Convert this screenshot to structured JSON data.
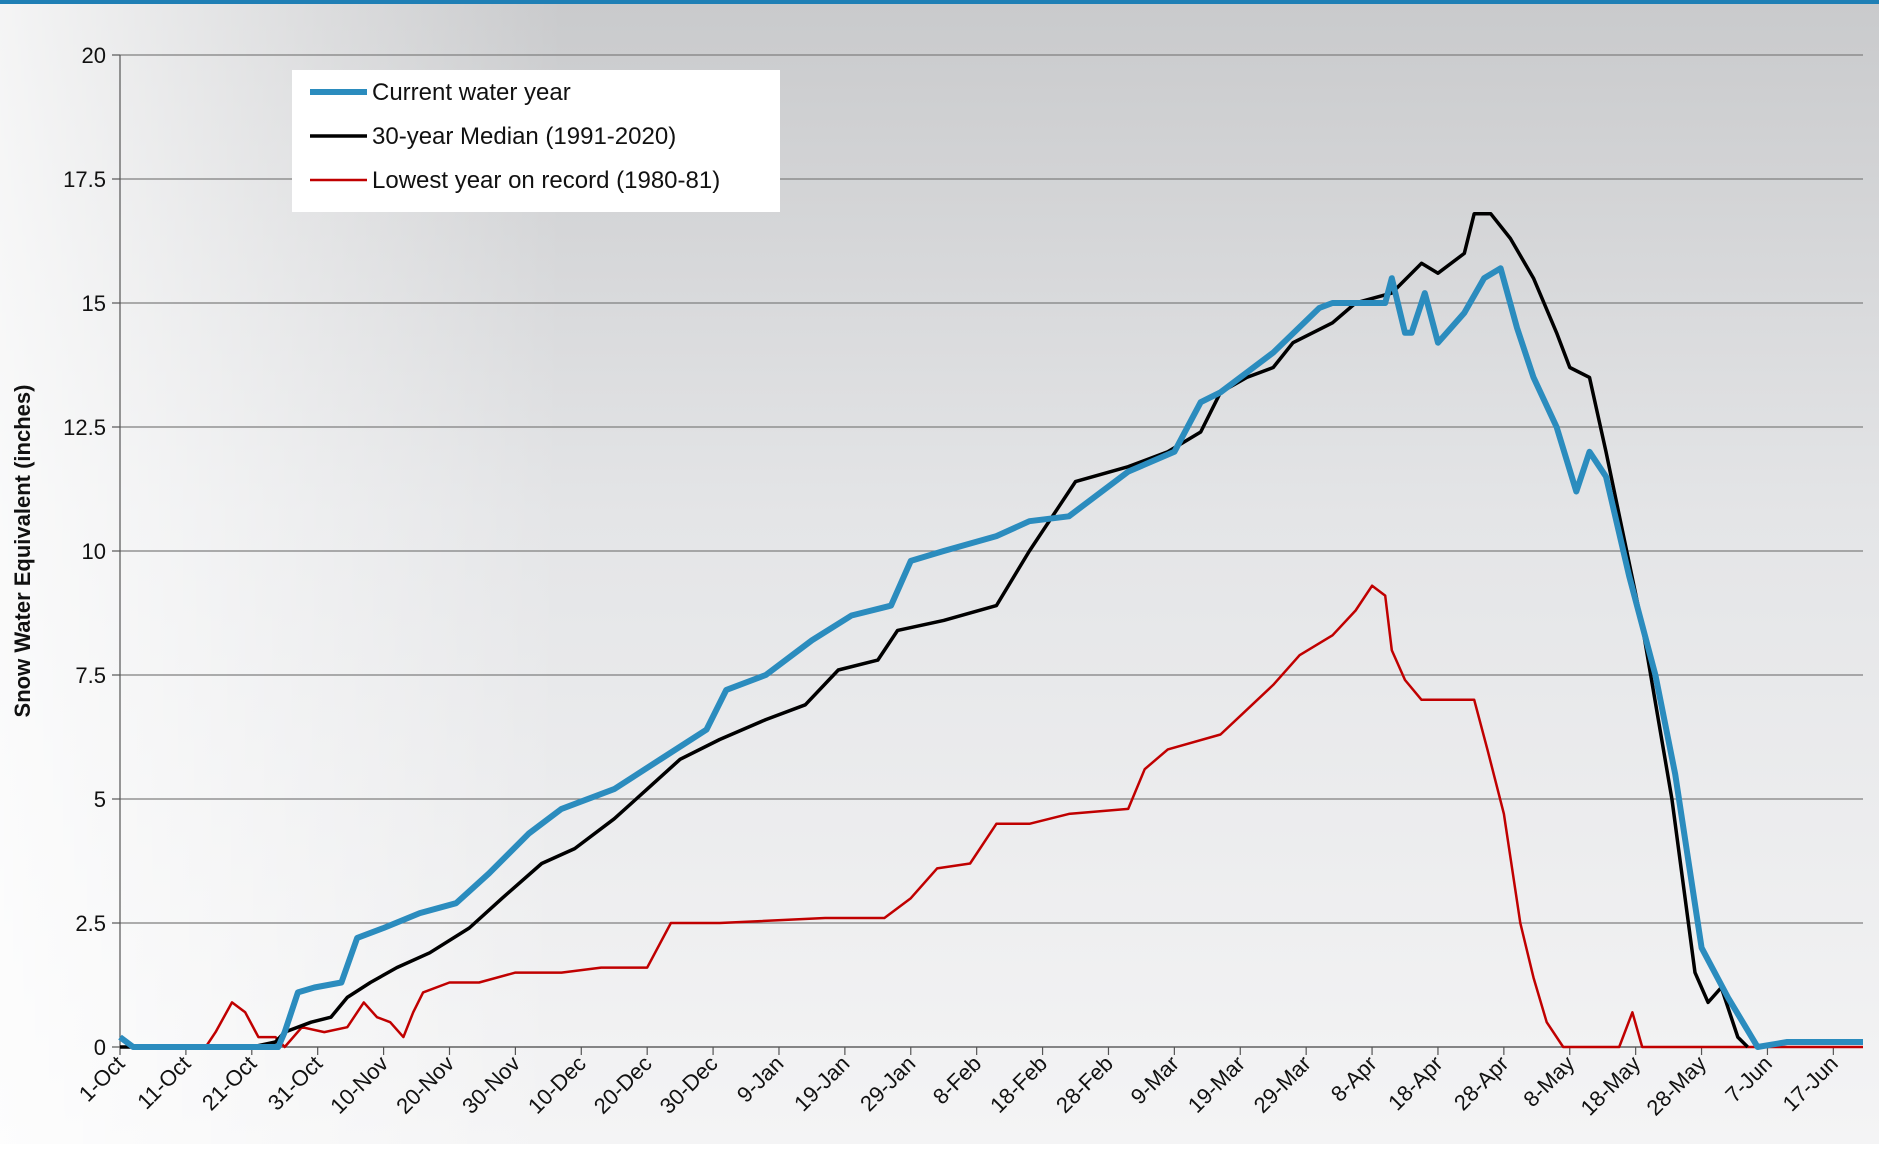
{
  "chart_data": {
    "type": "line",
    "y_label": "Snow Water Equivalent (inches)",
    "xlim": [
      0,
      264.5
    ],
    "ylim": [
      0,
      20
    ],
    "yticks": [
      0,
      2.5,
      5,
      7.5,
      10,
      12.5,
      15,
      17.5,
      20
    ],
    "xticks": [
      {
        "value": 0,
        "label": "1-Oct"
      },
      {
        "value": 10,
        "label": "11-Oct"
      },
      {
        "value": 20,
        "label": "21-Oct"
      },
      {
        "value": 30,
        "label": "31-Oct"
      },
      {
        "value": 40,
        "label": "10-Nov"
      },
      {
        "value": 50,
        "label": "20-Nov"
      },
      {
        "value": 60,
        "label": "30-Nov"
      },
      {
        "value": 70,
        "label": "10-Dec"
      },
      {
        "value": 80,
        "label": "20-Dec"
      },
      {
        "value": 90,
        "label": "30-Dec"
      },
      {
        "value": 100,
        "label": "9-Jan"
      },
      {
        "value": 110,
        "label": "19-Jan"
      },
      {
        "value": 120,
        "label": "29-Jan"
      },
      {
        "value": 130,
        "label": "8-Feb"
      },
      {
        "value": 140,
        "label": "18-Feb"
      },
      {
        "value": 150,
        "label": "28-Feb"
      },
      {
        "value": 160,
        "label": "9-Mar"
      },
      {
        "value": 170,
        "label": "19-Mar"
      },
      {
        "value": 180,
        "label": "29-Mar"
      },
      {
        "value": 190,
        "label": "8-Apr"
      },
      {
        "value": 200,
        "label": "18-Apr"
      },
      {
        "value": 210,
        "label": "28-Apr"
      },
      {
        "value": 220,
        "label": "8-May"
      },
      {
        "value": 230,
        "label": "18-May"
      },
      {
        "value": 240,
        "label": "28-May"
      },
      {
        "value": 250,
        "label": "7-Jun"
      },
      {
        "value": 260,
        "label": "17-Jun"
      }
    ],
    "grid": true,
    "legend": "upper-left",
    "series": [
      {
        "name": "Current water year",
        "color": "#2b8cbe",
        "x": [
          0,
          2,
          24,
          25,
          27,
          29.5,
          33.6,
          36,
          40,
          45.5,
          51,
          56,
          62,
          67,
          75,
          82,
          89,
          92,
          98,
          105,
          111,
          117,
          120,
          125,
          133,
          138,
          144,
          153,
          160,
          164,
          167,
          175,
          182,
          184,
          192,
          193,
          195,
          196,
          198,
          200,
          204,
          207,
          209.5,
          212,
          214.5,
          218,
          221,
          223,
          225.5,
          229,
          233,
          236,
          240,
          244,
          248.5,
          253,
          264.5
        ],
        "values": [
          0.2,
          0,
          0,
          0.3,
          1.1,
          1.2,
          1.3,
          2.2,
          2.4,
          2.7,
          2.9,
          3.5,
          4.3,
          4.8,
          5.2,
          5.8,
          6.4,
          7.2,
          7.5,
          8.2,
          8.7,
          8.9,
          9.8,
          10.0,
          10.3,
          10.6,
          10.7,
          11.6,
          12.0,
          13.0,
          13.2,
          14.0,
          14.9,
          15.0,
          15.0,
          15.5,
          14.4,
          14.4,
          15.2,
          14.2,
          14.8,
          15.5,
          15.7,
          14.5,
          13.5,
          12.5,
          11.2,
          12.0,
          11.5,
          9.5,
          7.5,
          5.5,
          2.0,
          1.0,
          0,
          0.1,
          0.1
        ]
      },
      {
        "name": "30-year Median (1991-2020)",
        "color": "#000000",
        "x": [
          0,
          20,
          23.6,
          25,
          29,
          32,
          34.5,
          38,
          42,
          47,
          53,
          58,
          64,
          69,
          75,
          80,
          85,
          91,
          98,
          104,
          109,
          115,
          118,
          125,
          133,
          138,
          145,
          153,
          159,
          164,
          167,
          171,
          175,
          178,
          184,
          187.5,
          193,
          197.5,
          200,
          204,
          205.5,
          208,
          211,
          214.5,
          218,
          220,
          223,
          225.5,
          231,
          235.5,
          239,
          241,
          243,
          245.5,
          247
        ],
        "values": [
          0,
          0,
          0.1,
          0.3,
          0.5,
          0.6,
          1.0,
          1.3,
          1.6,
          1.9,
          2.4,
          3.0,
          3.7,
          4.0,
          4.6,
          5.2,
          5.8,
          6.2,
          6.6,
          6.9,
          7.6,
          7.8,
          8.4,
          8.6,
          8.9,
          10.0,
          11.4,
          11.7,
          12.0,
          12.4,
          13.2,
          13.5,
          13.7,
          14.2,
          14.6,
          15.0,
          15.2,
          15.8,
          15.6,
          16.0,
          16.8,
          16.8,
          16.3,
          15.5,
          14.4,
          13.7,
          13.5,
          12.0,
          8.5,
          5.0,
          1.5,
          0.9,
          1.2,
          0.2,
          0
        ]
      },
      {
        "name": "Lowest year on record (1980-81)",
        "color": "#c00000",
        "x": [
          0,
          13,
          14.5,
          17,
          19,
          21,
          23.6,
          25,
          27.6,
          31,
          34.5,
          37,
          39,
          41,
          43,
          44.5,
          46,
          50,
          54.5,
          60,
          67,
          73,
          80,
          83.6,
          91,
          107,
          116,
          120,
          124,
          129,
          133,
          138,
          144,
          153,
          155.5,
          159,
          167,
          171,
          175,
          179,
          184,
          187.5,
          190,
          192,
          193,
          195,
          197.5,
          205.5,
          207.5,
          210,
          212.5,
          214.5,
          216.5,
          219,
          227.5,
          229.5,
          231,
          264.5
        ],
        "values": [
          0,
          0,
          0.3,
          0.9,
          0.7,
          0.2,
          0.2,
          0,
          0.4,
          0.3,
          0.4,
          0.9,
          0.6,
          0.5,
          0.2,
          0.7,
          1.1,
          1.3,
          1.3,
          1.5,
          1.5,
          1.6,
          1.6,
          2.5,
          2.5,
          2.6,
          2.6,
          3.0,
          3.6,
          3.7,
          4.5,
          4.5,
          4.7,
          4.8,
          5.6,
          6.0,
          6.3,
          6.8,
          7.3,
          7.9,
          8.3,
          8.8,
          9.3,
          9.1,
          8.0,
          7.4,
          7.0,
          7.0,
          6.0,
          4.7,
          2.5,
          1.4,
          0.5,
          0,
          0,
          0.7,
          0,
          0
        ]
      }
    ]
  }
}
